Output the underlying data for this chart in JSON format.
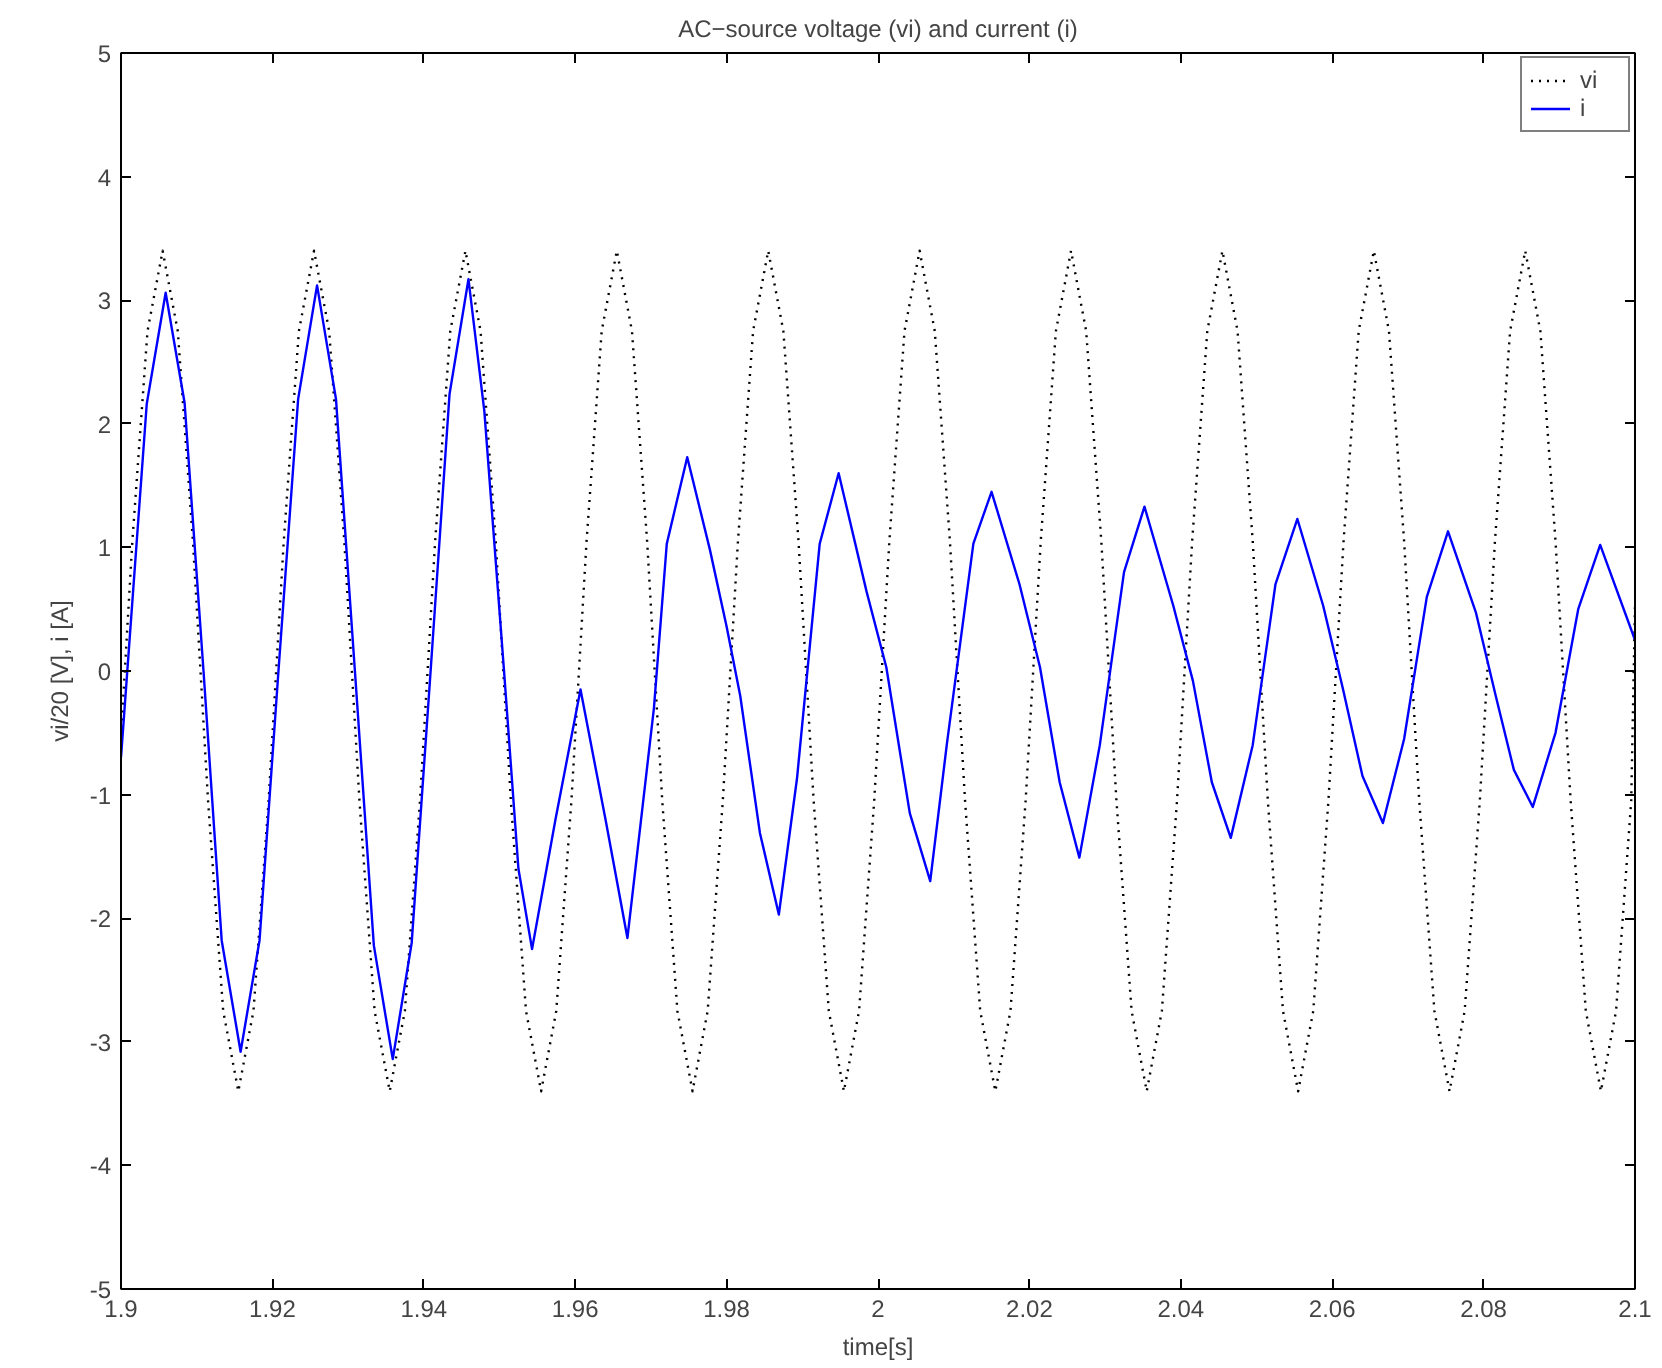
{
  "chart_data": {
    "type": "line",
    "title": "AC−source voltage (vi) and current (i)",
    "xlabel": "time[s]",
    "ylabel": "vi/20 [V], i [A]",
    "xlim": [
      1.9,
      2.1
    ],
    "ylim": [
      -5,
      5
    ],
    "xticks": [
      1.9,
      1.92,
      1.94,
      1.96,
      1.98,
      2,
      2.02,
      2.04,
      2.06,
      2.08,
      2.1
    ],
    "yticks": [
      -5,
      -4,
      -3,
      -2,
      -1,
      0,
      1,
      2,
      3,
      4,
      5
    ],
    "grid": false,
    "legend": "top right",
    "series": [
      {
        "name": "vi",
        "color": "#000000",
        "line_style": "dotted",
        "x": [
          1.9,
          1.9015,
          1.9035,
          1.9055,
          1.9075,
          1.9095,
          1.9115,
          1.9135,
          1.9155,
          1.9175,
          1.9195,
          1.9215,
          1.9235,
          1.9255,
          1.9275,
          1.9295,
          1.9315,
          1.9335,
          1.9355,
          1.9375,
          1.9395,
          1.9415,
          1.9435,
          1.9455,
          1.9475,
          1.9495,
          1.9515,
          1.9535,
          1.9555,
          1.9575,
          1.9595,
          1.9615,
          1.9635,
          1.9655,
          1.9675,
          1.9695,
          1.9715,
          1.9735,
          1.9755,
          1.9775,
          1.9795,
          1.9815,
          1.9835,
          1.9855,
          1.9875,
          1.9895,
          1.9915,
          1.9935,
          1.9955,
          1.9975,
          1.9995,
          2.0015,
          2.0035,
          2.0055,
          2.0075,
          2.0095,
          2.0115,
          2.0135,
          2.0155,
          2.0175,
          2.0195,
          2.0215,
          2.0235,
          2.0255,
          2.0275,
          2.0295,
          2.0315,
          2.0335,
          2.0355,
          2.0375,
          2.0395,
          2.0415,
          2.0435,
          2.0455,
          2.0475,
          2.0495,
          2.0515,
          2.0535,
          2.0555,
          2.0575,
          2.0595,
          2.0615,
          2.0635,
          2.0655,
          2.0675,
          2.0695,
          2.0715,
          2.0735,
          2.0755,
          2.0775,
          2.0795,
          2.0815,
          2.0835,
          2.0855,
          2.0875,
          2.0895,
          2.0915,
          2.0935,
          2.0955,
          2.0975,
          2.0995,
          2.1
        ],
        "values": [
          -0.53,
          1.05,
          2.75,
          3.4,
          2.75,
          1.05,
          -1.05,
          -2.75,
          -3.4,
          -2.75,
          -1.05,
          1.05,
          2.75,
          3.4,
          2.75,
          1.05,
          -1.05,
          -2.75,
          -3.4,
          -2.75,
          -1.05,
          1.05,
          2.75,
          3.4,
          2.75,
          1.05,
          -1.05,
          -2.75,
          -3.4,
          -2.75,
          -1.05,
          1.05,
          2.75,
          3.4,
          2.75,
          1.05,
          -1.05,
          -2.75,
          -3.4,
          -2.75,
          -1.05,
          1.05,
          2.75,
          3.4,
          2.75,
          1.05,
          -1.05,
          -2.75,
          -3.4,
          -2.75,
          -1.05,
          1.05,
          2.75,
          3.4,
          2.75,
          1.05,
          -1.05,
          -2.75,
          -3.4,
          -2.75,
          -1.05,
          1.05,
          2.75,
          3.4,
          2.75,
          1.05,
          -1.05,
          -2.75,
          -3.4,
          -2.75,
          -1.05,
          1.05,
          2.75,
          3.4,
          2.75,
          1.05,
          -1.05,
          -2.75,
          -3.4,
          -2.75,
          -1.05,
          1.05,
          2.75,
          3.4,
          2.75,
          1.05,
          -1.05,
          -2.75,
          -3.4,
          -2.75,
          -1.05,
          1.05,
          2.75,
          3.4,
          2.75,
          1.05,
          -1.05,
          -2.75,
          -3.4,
          -2.75,
          -1.05,
          0.53
        ]
      },
      {
        "name": "i",
        "color": "#0000ff",
        "line_style": "solid",
        "x": [
          1.9,
          1.9034,
          1.9059,
          1.9084,
          1.9109,
          1.9133,
          1.9158,
          1.9183,
          1.9208,
          1.9234,
          1.9259,
          1.9284,
          1.9309,
          1.9334,
          1.9359,
          1.9384,
          1.9409,
          1.9434,
          1.9459,
          1.948,
          1.9506,
          1.9525,
          1.9543,
          1.9574,
          1.9607,
          1.964,
          1.9669,
          1.9704,
          1.9721,
          1.9748,
          1.9778,
          1.98,
          1.9818,
          1.9844,
          1.9869,
          1.9893,
          1.9923,
          1.9948,
          1.9985,
          2.0011,
          2.0042,
          2.0069,
          2.0091,
          2.0126,
          2.015,
          2.0187,
          2.0214,
          2.024,
          2.0266,
          2.0293,
          2.0325,
          2.0352,
          2.039,
          2.0416,
          2.0441,
          2.0466,
          2.0495,
          2.0525,
          2.0554,
          2.0588,
          2.0614,
          2.064,
          2.0667,
          2.0695,
          2.0725,
          2.0753,
          2.079,
          2.0816,
          2.084,
          2.0865,
          2.0895,
          2.0925,
          2.0954,
          2.1
        ],
        "values": [
          -0.7,
          2.16,
          3.06,
          2.17,
          0,
          -2.18,
          -3.08,
          -2.18,
          0,
          2.2,
          3.12,
          2.2,
          0,
          -2.22,
          -3.14,
          -2.2,
          0,
          2.24,
          3.17,
          2.1,
          0,
          -1.6,
          -2.25,
          -1.2,
          -0.15,
          -1.2,
          -2.16,
          -0.3,
          1.03,
          1.73,
          0.98,
          0.36,
          -0.2,
          -1.31,
          -1.97,
          -0.87,
          1.03,
          1.6,
          0.64,
          0.03,
          -1.15,
          -1.7,
          -0.59,
          1.03,
          1.45,
          0.7,
          0.03,
          -0.9,
          -1.51,
          -0.6,
          0.8,
          1.33,
          0.53,
          -0.08,
          -0.9,
          -1.35,
          -0.6,
          0.7,
          1.23,
          0.53,
          -0.14,
          -0.85,
          -1.23,
          -0.55,
          0.6,
          1.13,
          0.47,
          -0.2,
          -0.8,
          -1.1,
          -0.5,
          0.5,
          1.02,
          0.25
        ]
      }
    ]
  }
}
